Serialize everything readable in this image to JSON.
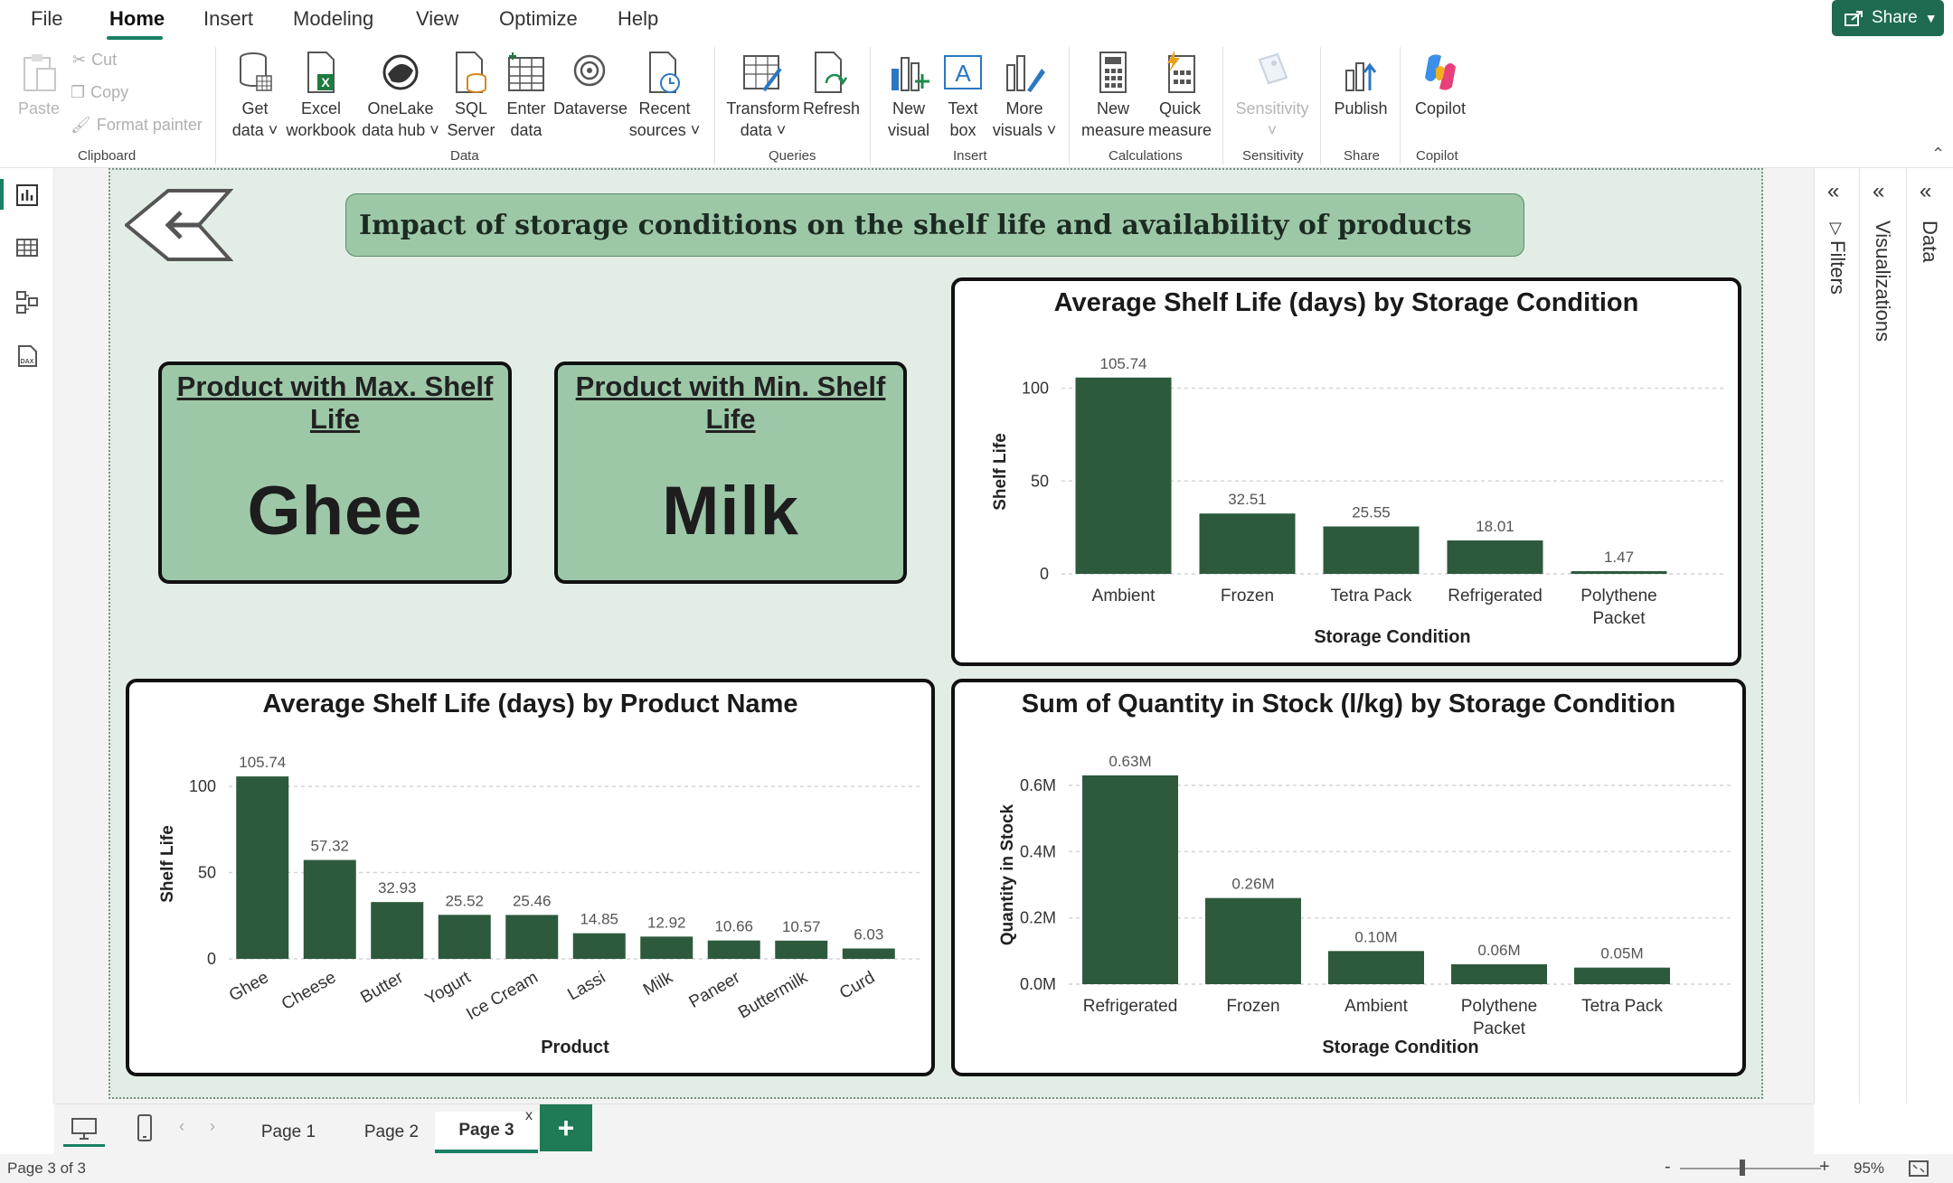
{
  "menu": {
    "file": "File",
    "home": "Home",
    "insert": "Insert",
    "modeling": "Modeling",
    "view": "View",
    "optimize": "Optimize",
    "help": "Help",
    "share": "Share"
  },
  "ribbon": {
    "paste": "Paste",
    "cut": "Cut",
    "copy": "Copy",
    "format_painter": "Format painter",
    "clipboard": "Clipboard",
    "get_data_1": "Get",
    "get_data_2": "data",
    "excel_1": "Excel",
    "excel_2": "workbook",
    "onelake_1": "OneLake",
    "onelake_2": "data hub",
    "sql_1": "SQL",
    "sql_2": "Server",
    "enter_1": "Enter",
    "enter_2": "data",
    "dataverse": "Dataverse",
    "recent_1": "Recent",
    "recent_2": "sources",
    "data_group": "Data",
    "transform_1": "Transform",
    "transform_2": "data",
    "refresh": "Refresh",
    "queries": "Queries",
    "new_visual_1": "New",
    "new_visual_2": "visual",
    "text_box_1": "Text",
    "text_box_2": "box",
    "more_visuals_1": "More",
    "more_visuals_2": "visuals",
    "insert_group": "Insert",
    "new_measure_1": "New",
    "new_measure_2": "measure",
    "quick_measure_1": "Quick",
    "quick_measure_2": "measure",
    "calculations": "Calculations",
    "sensitivity_btn": "Sensitivity",
    "sensitivity_group": "Sensitivity",
    "publish": "Publish",
    "share_group": "Share",
    "copilot_btn": "Copilot",
    "copilot_group": "Copilot"
  },
  "report": {
    "banner": "Impact of storage conditions on the shelf life and availability of products",
    "kpi_max_title": "Product with Max. Shelf Life",
    "kpi_max_value": "Ghee",
    "kpi_min_title": "Product with Min. Shelf Life",
    "kpi_min_value": "Milk"
  },
  "colors": {
    "bar": "#2d5a3d",
    "card_fill": "#9dc8a8",
    "page_bg": "#e2eee5",
    "accent": "#1a7f64"
  },
  "chart_data": [
    {
      "id": "storage",
      "type": "bar",
      "title": "Average Shelf Life (days) by Storage Condition",
      "xlabel": "Storage Condition",
      "ylabel": "Shelf Life",
      "categories": [
        "Ambient",
        "Frozen",
        "Tetra Pack",
        "Refrigerated",
        "Polythene Packet"
      ],
      "values": [
        105.74,
        32.51,
        25.55,
        18.01,
        1.47
      ],
      "value_labels": [
        "105.74",
        "32.51",
        "25.55",
        "18.01",
        "1.47"
      ],
      "yticks": [
        0,
        50,
        100
      ],
      "ytick_labels": [
        "0",
        "50",
        "100"
      ],
      "ylim": [
        0,
        110
      ],
      "grid": true,
      "legend": "none"
    },
    {
      "id": "product",
      "type": "bar",
      "title": "Average Shelf Life (days) by Product Name",
      "xlabel": "Product",
      "ylabel": "Shelf Life",
      "categories": [
        "Ghee",
        "Cheese",
        "Butter",
        "Yogurt",
        "Ice Cream",
        "Lassi",
        "Milk",
        "Paneer",
        "Buttermilk",
        "Curd"
      ],
      "values": [
        105.74,
        57.32,
        32.93,
        25.52,
        25.46,
        14.85,
        12.92,
        10.66,
        10.57,
        6.03
      ],
      "value_labels": [
        "105.74",
        "57.32",
        "32.93",
        "25.52",
        "25.46",
        "14.85",
        "12.92",
        "10.66",
        "10.57",
        "6.03"
      ],
      "yticks": [
        0,
        50,
        100
      ],
      "ytick_labels": [
        "0",
        "50",
        "100"
      ],
      "ylim": [
        0,
        110
      ],
      "grid": true,
      "legend": "none"
    },
    {
      "id": "stock",
      "type": "bar",
      "title": "Sum of Quantity in Stock (l/kg) by Storage Condition",
      "xlabel": "Storage Condition",
      "ylabel": "Quantity in Stock",
      "categories": [
        "Refrigerated",
        "Frozen",
        "Ambient",
        "Polythene Packet",
        "Tetra Pack"
      ],
      "values": [
        0.63,
        0.26,
        0.1,
        0.06,
        0.05
      ],
      "value_labels": [
        "0.63M",
        "0.26M",
        "0.10M",
        "0.06M",
        "0.05M"
      ],
      "yticks": [
        0,
        0.2,
        0.4,
        0.6
      ],
      "ytick_labels": [
        "0.0M",
        "0.2M",
        "0.4M",
        "0.6M"
      ],
      "ylim": [
        0,
        0.66
      ],
      "grid": true,
      "legend": "none"
    }
  ],
  "panes": {
    "filters": "Filters",
    "visualizations": "Visualizations",
    "data": "Data"
  },
  "pages": {
    "page1": "Page 1",
    "page2": "Page 2",
    "page3": "Page 3",
    "close": "x",
    "add": "+"
  },
  "status": {
    "page_info": "Page 3 of 3",
    "zoom": "95%",
    "minus": "-",
    "plus": "+"
  }
}
